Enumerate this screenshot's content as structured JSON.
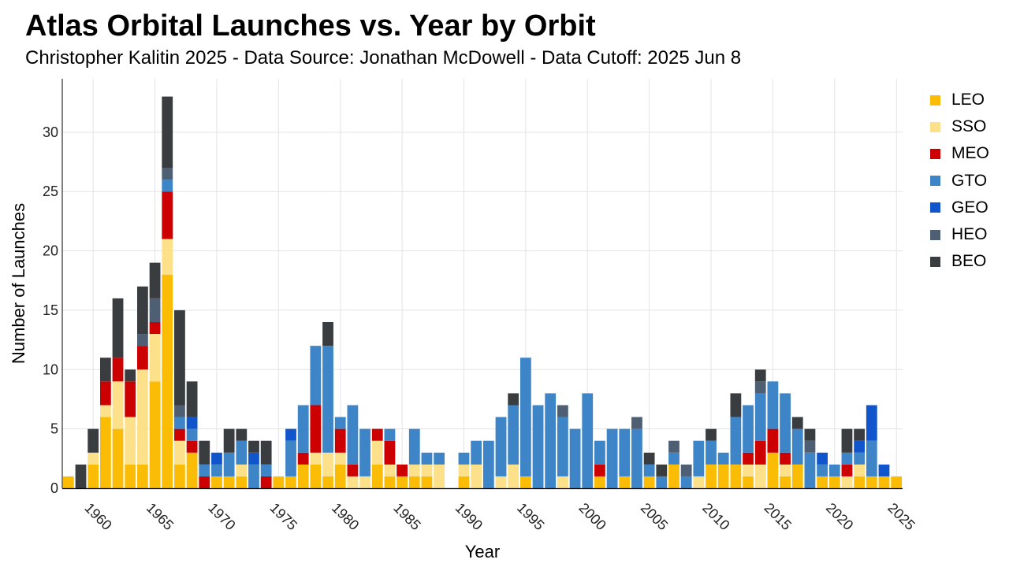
{
  "title": "Atlas Orbital Launches vs. Year by Orbit",
  "subtitle": "Christopher Kalitin 2025 - Data Source: Jonathan McDowell - Data Cutoff: 2025 Jun 8",
  "chart_data": {
    "type": "bar",
    "stacked": true,
    "xlabel": "Year",
    "ylabel": "Number of Launches",
    "xlim": [
      1957.5,
      2025.5
    ],
    "ylim": [
      0,
      34.5
    ],
    "y_ticks": [
      0,
      5,
      10,
      15,
      20,
      25,
      30
    ],
    "x_ticks": [
      1960,
      1965,
      1970,
      1975,
      1980,
      1985,
      1990,
      1995,
      2000,
      2005,
      2010,
      2015,
      2020,
      2025
    ],
    "grid": true,
    "legend_position": "right",
    "categories": [
      1958,
      1959,
      1960,
      1961,
      1962,
      1963,
      1964,
      1965,
      1966,
      1967,
      1968,
      1969,
      1970,
      1971,
      1972,
      1973,
      1974,
      1975,
      1976,
      1977,
      1978,
      1979,
      1980,
      1981,
      1982,
      1983,
      1984,
      1985,
      1986,
      1987,
      1988,
      1989,
      1990,
      1991,
      1992,
      1993,
      1994,
      1995,
      1996,
      1997,
      1998,
      1999,
      2000,
      2001,
      2002,
      2003,
      2004,
      2005,
      2006,
      2007,
      2008,
      2009,
      2010,
      2011,
      2012,
      2013,
      2014,
      2015,
      2016,
      2017,
      2018,
      2019,
      2020,
      2021,
      2022,
      2023,
      2024,
      2025
    ],
    "series": [
      {
        "name": "LEO",
        "color": "#FBBC05",
        "values": [
          1,
          0,
          2,
          6,
          5,
          2,
          2,
          9,
          18,
          2,
          3,
          0,
          1,
          1,
          1,
          0,
          0,
          1,
          1,
          2,
          2,
          1,
          2,
          0,
          0,
          2,
          1,
          1,
          1,
          1,
          0,
          0,
          1,
          0,
          0,
          0,
          0,
          1,
          0,
          0,
          0,
          0,
          0,
          1,
          0,
          1,
          0,
          1,
          0,
          2,
          0,
          0,
          2,
          2,
          2,
          1,
          0,
          3,
          1,
          2,
          0,
          1,
          1,
          0,
          1,
          1,
          1,
          1
        ]
      },
      {
        "name": "SSO",
        "color": "#FDE08A",
        "values": [
          0,
          0,
          1,
          1,
          4,
          4,
          8,
          4,
          3,
          2,
          0,
          0,
          0,
          0,
          1,
          0,
          0,
          0,
          0,
          0,
          1,
          2,
          1,
          1,
          1,
          2,
          1,
          0,
          1,
          1,
          2,
          0,
          1,
          2,
          0,
          1,
          2,
          0,
          0,
          0,
          1,
          0,
          0,
          0,
          0,
          0,
          0,
          0,
          0,
          0,
          0,
          1,
          0,
          0,
          0,
          1,
          2,
          0,
          1,
          0,
          0,
          0,
          0,
          1,
          1,
          0,
          0,
          0
        ]
      },
      {
        "name": "MEO",
        "color": "#CC0000",
        "values": [
          0,
          0,
          0,
          2,
          2,
          3,
          2,
          1,
          4,
          1,
          1,
          1,
          0,
          0,
          0,
          0,
          1,
          0,
          0,
          1,
          4,
          0,
          2,
          1,
          0,
          1,
          2,
          1,
          0,
          0,
          0,
          0,
          0,
          0,
          0,
          0,
          0,
          0,
          0,
          0,
          0,
          0,
          0,
          1,
          0,
          0,
          0,
          0,
          0,
          0,
          0,
          0,
          0,
          0,
          0,
          1,
          2,
          2,
          1,
          0,
          0,
          0,
          0,
          1,
          0,
          0,
          0,
          0
        ]
      },
      {
        "name": "GTO",
        "color": "#3D85C6",
        "values": [
          0,
          0,
          0,
          0,
          0,
          0,
          0,
          0,
          1,
          1,
          1,
          1,
          1,
          2,
          2,
          2,
          1,
          0,
          3,
          4,
          5,
          9,
          1,
          5,
          4,
          0,
          1,
          0,
          3,
          1,
          1,
          0,
          1,
          2,
          4,
          5,
          5,
          10,
          7,
          8,
          5,
          5,
          8,
          2,
          5,
          4,
          5,
          1,
          1,
          1,
          1,
          3,
          2,
          1,
          4,
          4,
          4,
          4,
          5,
          3,
          3,
          1,
          1,
          1,
          1,
          3,
          0,
          0
        ]
      },
      {
        "name": "GEO",
        "color": "#1155CC",
        "values": [
          0,
          0,
          0,
          0,
          0,
          0,
          0,
          0,
          0,
          0,
          1,
          0,
          1,
          0,
          0,
          1,
          0,
          0,
          1,
          0,
          0,
          0,
          0,
          0,
          0,
          0,
          0,
          0,
          0,
          0,
          0,
          0,
          0,
          0,
          0,
          0,
          0,
          0,
          0,
          0,
          0,
          0,
          0,
          0,
          0,
          0,
          0,
          0,
          0,
          0,
          0,
          0,
          0,
          0,
          0,
          0,
          0,
          0,
          0,
          0,
          0,
          1,
          0,
          0,
          1,
          3,
          1,
          0
        ]
      },
      {
        "name": "HEO",
        "color": "#4F5F73",
        "values": [
          0,
          0,
          0,
          0,
          0,
          0,
          1,
          2,
          1,
          1,
          0,
          0,
          0,
          0,
          0,
          0,
          0,
          0,
          0,
          0,
          0,
          0,
          0,
          0,
          0,
          0,
          0,
          0,
          0,
          0,
          0,
          0,
          0,
          0,
          0,
          0,
          0,
          0,
          0,
          0,
          1,
          0,
          0,
          0,
          0,
          0,
          1,
          0,
          0,
          1,
          1,
          0,
          0,
          0,
          0,
          0,
          1,
          0,
          0,
          0,
          1,
          0,
          0,
          0,
          0,
          0,
          0,
          0
        ]
      },
      {
        "name": "BEO",
        "color": "#3A3D40",
        "values": [
          0,
          2,
          2,
          2,
          5,
          1,
          4,
          3,
          6,
          8,
          3,
          2,
          0,
          2,
          1,
          1,
          2,
          0,
          0,
          0,
          0,
          2,
          0,
          0,
          0,
          0,
          0,
          0,
          0,
          0,
          0,
          0,
          0,
          0,
          0,
          0,
          1,
          0,
          0,
          0,
          0,
          0,
          0,
          0,
          0,
          0,
          0,
          1,
          1,
          0,
          0,
          0,
          1,
          0,
          2,
          0,
          1,
          0,
          0,
          1,
          1,
          0,
          0,
          2,
          1,
          0,
          0,
          0
        ]
      }
    ]
  }
}
